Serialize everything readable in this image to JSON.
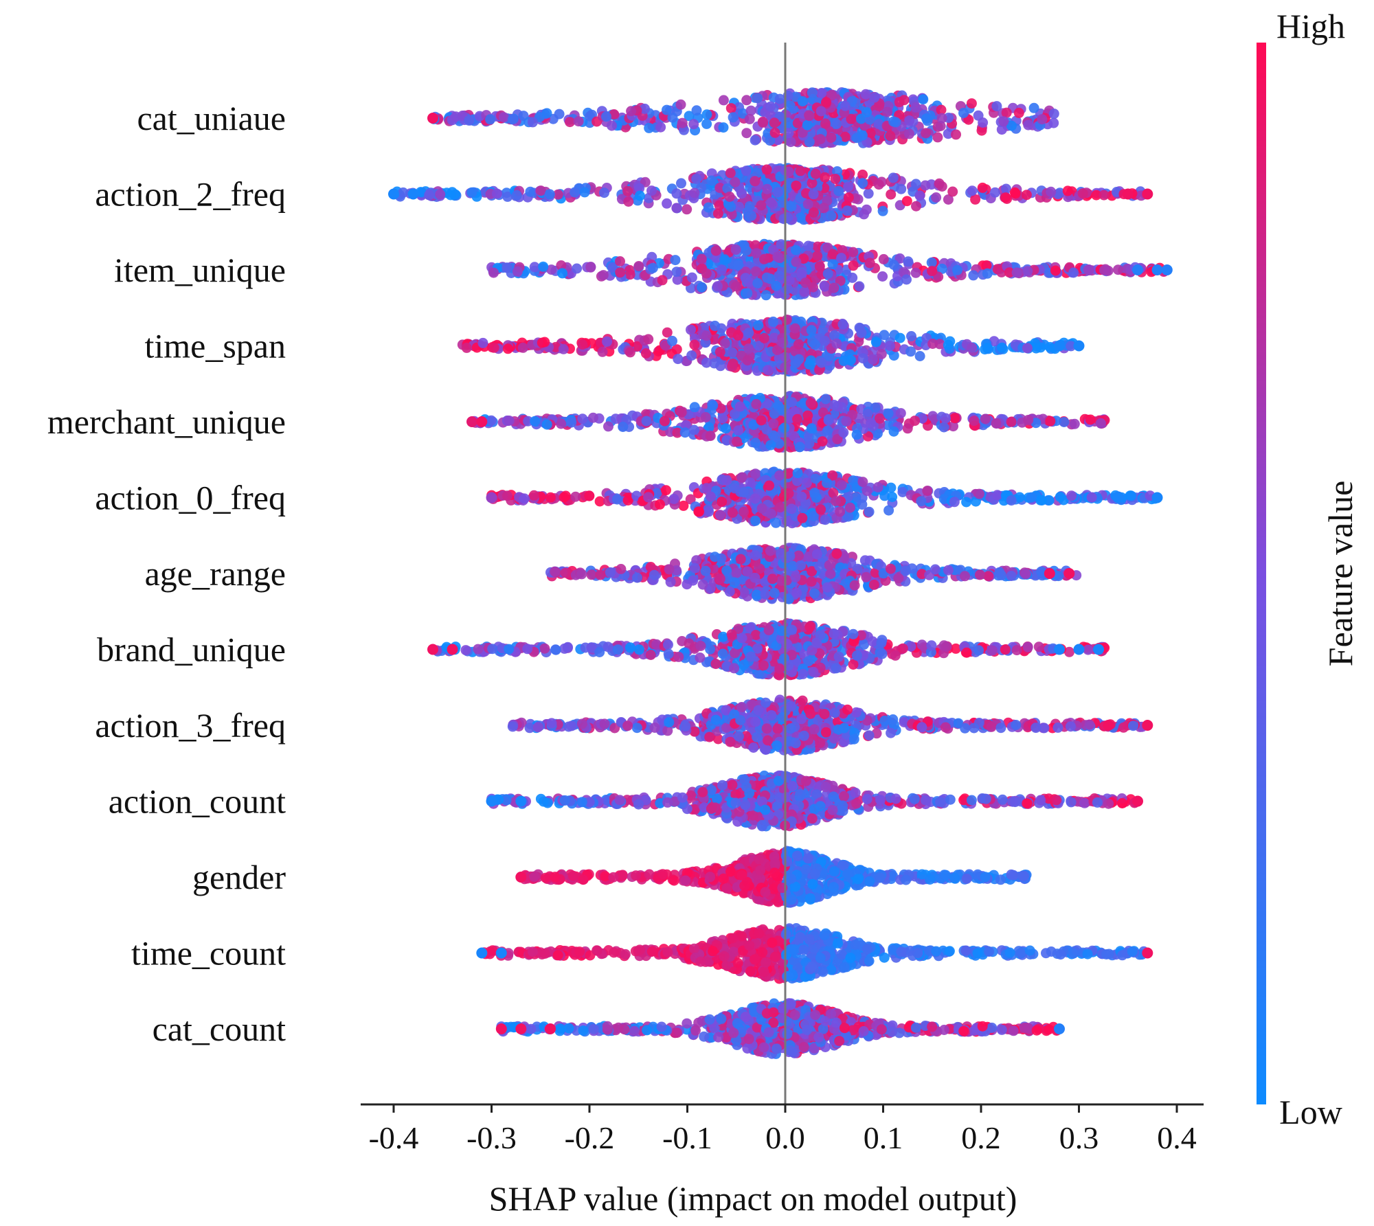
{
  "chart_data": {
    "type": "scatter",
    "subtype": "shap-beeswarm",
    "xlabel": "SHAP value (impact on model output)",
    "xlim": [
      -0.42,
      0.42
    ],
    "xticks": [
      -0.4,
      -0.3,
      -0.2,
      -0.1,
      0.0,
      0.1,
      0.2,
      0.3,
      0.4
    ],
    "xtick_labels": [
      "-0.4",
      "-0.3",
      "-0.2",
      "-0.1",
      "0.0",
      "0.1",
      "0.2",
      "0.3",
      "0.4"
    ],
    "features": [
      {
        "name": "cat_uniaue",
        "min": -0.36,
        "max": 0.28,
        "width": 0.33,
        "bias": 0.0,
        "core": 0.05,
        "outliers": [
          [
            -0.36,
            0.95
          ]
        ]
      },
      {
        "name": "action_2_freq",
        "min": -0.4,
        "max": 0.37,
        "width": 0.26,
        "bias": 0.2,
        "core": 0.0,
        "outliers": [
          [
            -0.4,
            0.05
          ],
          [
            -0.38,
            0.05
          ],
          [
            0.37,
            0.95
          ],
          [
            0.35,
            0.95
          ]
        ]
      },
      {
        "name": "item_unique",
        "min": -0.3,
        "max": 0.39,
        "width": 0.24,
        "bias": 0.15,
        "core": -0.01,
        "outliers": [
          [
            0.36,
            0.1
          ],
          [
            0.38,
            0.1
          ],
          [
            0.39,
            0.1
          ],
          [
            0.31,
            0.6
          ]
        ]
      },
      {
        "name": "time_span",
        "min": -0.33,
        "max": 0.3,
        "width": 0.24,
        "bias": -0.4,
        "core": 0.0,
        "outliers": [
          [
            0.28,
            0.05
          ],
          [
            0.3,
            0.05
          ]
        ]
      },
      {
        "name": "merchant_unique",
        "min": -0.32,
        "max": 0.33,
        "width": 0.2,
        "bias": 0.1,
        "core": 0.0,
        "outliers": [
          [
            -0.32,
            0.9
          ],
          [
            -0.31,
            0.95
          ]
        ]
      },
      {
        "name": "action_0_freq",
        "min": -0.3,
        "max": 0.38,
        "width": 0.2,
        "bias": -0.35,
        "core": 0.0,
        "outliers": [
          [
            0.38,
            0.05
          ],
          [
            0.34,
            0.05
          ],
          [
            -0.3,
            0.6
          ]
        ]
      },
      {
        "name": "age_range",
        "min": -0.24,
        "max": 0.3,
        "width": 0.18,
        "bias": -0.1,
        "core": 0.0,
        "outliers": [
          [
            0.29,
            0.95
          ],
          [
            0.27,
            0.95
          ]
        ]
      },
      {
        "name": "brand_unique",
        "min": -0.36,
        "max": 0.33,
        "width": 0.17,
        "bias": 0.2,
        "core": 0.0,
        "outliers": [
          [
            -0.36,
            0.95
          ],
          [
            -0.34,
            0.95
          ],
          [
            0.32,
            0.05
          ],
          [
            0.3,
            0.05
          ],
          [
            0.28,
            0.05
          ]
        ]
      },
      {
        "name": "action_3_freq",
        "min": -0.28,
        "max": 0.37,
        "width": 0.15,
        "bias": 0.1,
        "core": 0.0,
        "outliers": [
          [
            0.37,
            0.95
          ],
          [
            0.33,
            0.95
          ]
        ]
      },
      {
        "name": "action_count",
        "min": -0.3,
        "max": 0.36,
        "width": 0.13,
        "bias": 0.2,
        "core": -0.01,
        "outliers": [
          [
            0.36,
            0.95
          ],
          [
            -0.3,
            0.05
          ],
          [
            -0.27,
            0.05
          ]
        ]
      },
      {
        "name": "gender",
        "min": -0.27,
        "max": 0.25,
        "width": 0.11,
        "bias": 0.0,
        "core": 0.0,
        "split": true,
        "outliers": [
          [
            -0.27,
            0.95
          ]
        ]
      },
      {
        "name": "time_count",
        "min": -0.31,
        "max": 0.37,
        "width": 0.13,
        "bias": 0.1,
        "core": 0.0,
        "split": true,
        "outliers": [
          [
            -0.31,
            0.05
          ],
          [
            -0.29,
            0.05
          ],
          [
            0.37,
            0.95
          ]
        ]
      },
      {
        "name": "cat_count",
        "min": -0.29,
        "max": 0.28,
        "width": 0.12,
        "bias": 0.35,
        "core": 0.0,
        "outliers": [
          [
            -0.29,
            0.95
          ],
          [
            -0.27,
            0.95
          ],
          [
            -0.24,
            0.95
          ],
          [
            0.28,
            0.1
          ]
        ]
      }
    ],
    "colorbar": {
      "title": "Feature value",
      "high_label": "High",
      "low_label": "Low",
      "high_color": "#ff0a54",
      "low_color": "#0d8bff"
    }
  }
}
